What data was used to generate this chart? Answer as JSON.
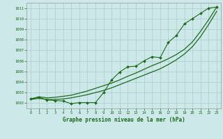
{
  "bg_color": "#cce8e8",
  "grid_color": "#aacccc",
  "line_color": "#1a6b1a",
  "title": "Graphe pression niveau de la mer (hPa)",
  "xlim": [
    -0.5,
    23.5
  ],
  "ylim": [
    1001.5,
    1011.5
  ],
  "yticks": [
    1002,
    1003,
    1004,
    1005,
    1006,
    1007,
    1008,
    1009,
    1010,
    1011
  ],
  "xticks": [
    0,
    1,
    2,
    3,
    4,
    5,
    6,
    7,
    8,
    9,
    10,
    11,
    12,
    13,
    14,
    15,
    16,
    17,
    18,
    19,
    20,
    21,
    22,
    23
  ],
  "measured": [
    1002.4,
    1002.55,
    1002.3,
    1002.25,
    1002.2,
    1001.95,
    1002.05,
    1002.05,
    1002.05,
    1003.0,
    1004.2,
    1004.95,
    1005.45,
    1005.5,
    1006.0,
    1006.4,
    1006.3,
    1007.75,
    1008.4,
    1009.5,
    1010.0,
    1010.5,
    1011.0,
    1011.1
  ],
  "smooth_upper": [
    1002.4,
    1002.6,
    1002.5,
    1002.55,
    1002.65,
    1002.75,
    1002.95,
    1003.15,
    1003.4,
    1003.65,
    1003.9,
    1004.2,
    1004.55,
    1004.85,
    1005.2,
    1005.55,
    1005.85,
    1006.2,
    1006.6,
    1007.1,
    1007.8,
    1008.8,
    1009.9,
    1011.1
  ],
  "smooth_lower": [
    1002.35,
    1002.45,
    1002.35,
    1002.35,
    1002.4,
    1002.5,
    1002.65,
    1002.8,
    1003.0,
    1003.2,
    1003.45,
    1003.75,
    1004.05,
    1004.35,
    1004.65,
    1004.95,
    1005.25,
    1005.65,
    1006.1,
    1006.65,
    1007.35,
    1008.3,
    1009.45,
    1010.7
  ]
}
